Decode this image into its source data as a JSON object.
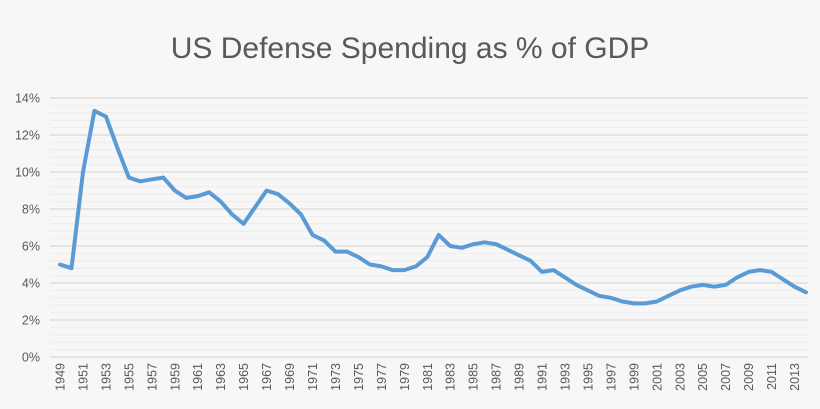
{
  "chart_data": {
    "type": "line",
    "title": "US Defense Spending as % of GDP",
    "xlabel": "",
    "ylabel": "",
    "ylim": [
      0,
      14
    ],
    "yticks": [
      "0%",
      "2%",
      "4%",
      "6%",
      "8%",
      "10%",
      "12%",
      "14%"
    ],
    "grid": true,
    "legend": "none",
    "line_color": "#5b9bd5",
    "x": [
      1949,
      1950,
      1951,
      1952,
      1953,
      1954,
      1955,
      1956,
      1957,
      1958,
      1959,
      1960,
      1961,
      1962,
      1963,
      1964,
      1965,
      1966,
      1967,
      1968,
      1969,
      1970,
      1971,
      1972,
      1973,
      1974,
      1975,
      1976,
      1977,
      1978,
      1979,
      1980,
      1981,
      1982,
      1983,
      1984,
      1985,
      1986,
      1987,
      1988,
      1989,
      1990,
      1991,
      1992,
      1993,
      1994,
      1995,
      1996,
      1997,
      1998,
      1999,
      2000,
      2001,
      2002,
      2003,
      2004,
      2005,
      2006,
      2007,
      2008,
      2009,
      2010,
      2011,
      2012,
      2013,
      2014
    ],
    "series": [
      {
        "values": [
          5.0,
          4.8,
          10.0,
          13.3,
          13.0,
          11.3,
          9.7,
          9.5,
          9.6,
          9.7,
          9.0,
          8.6,
          8.7,
          8.9,
          8.4,
          7.7,
          7.2,
          8.1,
          9.0,
          8.8,
          8.3,
          7.7,
          6.6,
          6.3,
          5.7,
          5.7,
          5.4,
          5.0,
          4.9,
          4.7,
          4.7,
          4.9,
          5.4,
          6.6,
          6.0,
          5.9,
          6.1,
          6.2,
          6.1,
          5.8,
          5.5,
          5.2,
          4.6,
          4.7,
          4.3,
          3.9,
          3.6,
          3.3,
          3.2,
          3.0,
          2.9,
          2.9,
          3.0,
          3.3,
          3.6,
          3.8,
          3.9,
          3.8,
          3.9,
          4.3,
          4.6,
          4.7,
          4.6,
          4.2,
          3.8,
          3.5
        ]
      }
    ]
  }
}
